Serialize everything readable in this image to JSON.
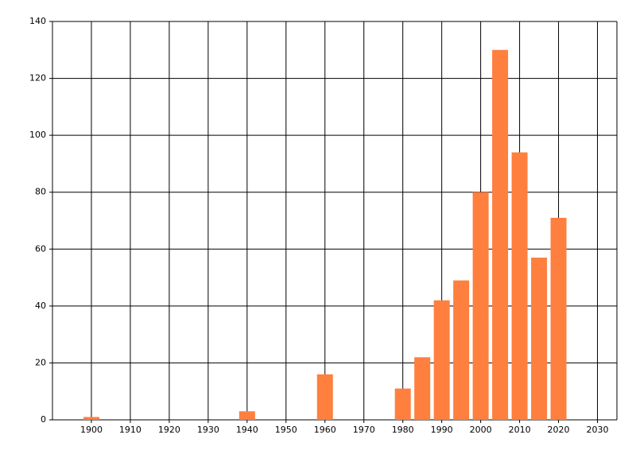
{
  "chart_data": {
    "type": "bar",
    "x": [
      1900,
      1940,
      1960,
      1980,
      1985,
      1990,
      1995,
      2000,
      2005,
      2010,
      2015,
      2020
    ],
    "values": [
      1,
      3,
      16,
      11,
      22,
      42,
      49,
      80,
      130,
      94,
      57,
      71
    ],
    "color": "#ff7f3f",
    "xlim": [
      1890,
      2035
    ],
    "xticks": [
      1900,
      1910,
      1920,
      1930,
      1940,
      1950,
      1960,
      1970,
      1980,
      1990,
      2000,
      2010,
      2020,
      2030
    ],
    "ylim": [
      0,
      140
    ],
    "yticks": [
      0,
      20,
      40,
      60,
      80,
      100,
      120,
      140
    ],
    "grid": true
  }
}
